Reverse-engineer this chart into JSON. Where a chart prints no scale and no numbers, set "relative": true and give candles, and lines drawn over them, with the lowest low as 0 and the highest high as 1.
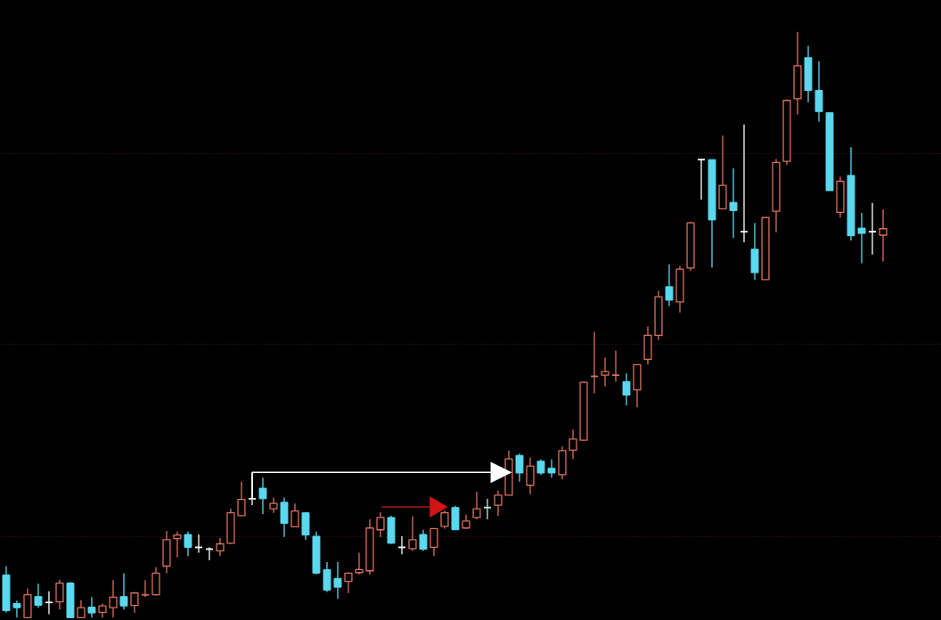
{
  "chart_data": {
    "type": "candlestick",
    "relative": true,
    "categories": [
      null,
      null,
      null,
      null,
      null,
      null,
      null,
      null,
      null,
      null,
      null,
      null,
      null,
      null,
      null,
      null,
      null,
      null,
      null,
      null,
      null,
      null,
      null,
      null,
      null,
      null,
      null,
      null,
      null,
      null,
      null,
      null,
      null,
      null,
      null,
      null,
      null,
      null,
      null,
      null,
      null,
      null,
      null,
      null,
      null,
      null,
      null,
      null,
      null,
      null,
      null,
      null,
      null,
      null,
      null,
      null,
      null,
      null,
      null,
      null,
      null,
      null,
      null,
      null,
      null,
      null,
      null,
      null,
      null,
      null,
      null,
      null,
      null,
      null,
      null,
      null,
      null,
      null,
      null,
      null,
      null,
      null,
      null
    ],
    "ohlc": [
      [
        0.073,
        0.088,
        0.009,
        0.012
      ],
      [
        0.024,
        0.029,
        0,
        0.017
      ],
      [
        0,
        0.05,
        0,
        0.039
      ],
      [
        0.036,
        0.058,
        0.017,
        0.021
      ],
      [
        0.026,
        0.045,
        0.006,
        0.026
      ],
      [
        0.027,
        0.065,
        0.014,
        0.059
      ],
      [
        0.059,
        0.061,
        0,
        0
      ],
      [
        0,
        0.03,
        0,
        0.017
      ],
      [
        0.018,
        0.035,
        0,
        0.008
      ],
      [
        0.009,
        0.024,
        0,
        0.02
      ],
      [
        0.017,
        0.064,
        0,
        0.035
      ],
      [
        0.036,
        0.076,
        0.014,
        0.02
      ],
      [
        0.021,
        0.044,
        0.008,
        0.042
      ],
      [
        0.039,
        0.064,
        0.035,
        0.042
      ],
      [
        0.039,
        0.086,
        0.038,
        0.076
      ],
      [
        0.088,
        0.148,
        0.076,
        0.133
      ],
      [
        0.135,
        0.147,
        0.103,
        0.141
      ],
      [
        0.142,
        0.147,
        0.105,
        0.12
      ],
      [
        0.12,
        0.142,
        0.111,
        0.12
      ],
      [
        0.117,
        0.12,
        0.098,
        0.117
      ],
      [
        0.114,
        0.136,
        0.105,
        0.126
      ],
      [
        0.127,
        0.186,
        0.126,
        0.179
      ],
      [
        0.174,
        0.232,
        0.174,
        0.202
      ],
      [
        0.203,
        0.247,
        0.192,
        0.203
      ],
      [
        0.221,
        0.239,
        0.177,
        0.203
      ],
      [
        0.186,
        0.205,
        0.179,
        0.195
      ],
      [
        0.197,
        0.205,
        0.138,
        0.161
      ],
      [
        0.155,
        0.195,
        0.155,
        0.182
      ],
      [
        0.179,
        0.18,
        0.133,
        0.141
      ],
      [
        0.139,
        0.147,
        0.074,
        0.076
      ],
      [
        0.082,
        0.095,
        0.044,
        0.047
      ],
      [
        0.067,
        0.095,
        0.032,
        0.052
      ],
      [
        0.062,
        0.077,
        0.042,
        0.076
      ],
      [
        0.077,
        0.111,
        0.074,
        0.082
      ],
      [
        0.08,
        0.168,
        0.073,
        0.153
      ],
      [
        0.15,
        0.18,
        0.138,
        0.171
      ],
      [
        0.171,
        0.174,
        0.126,
        0.127
      ],
      [
        0.12,
        0.139,
        0.108,
        0.12
      ],
      [
        0.118,
        0.173,
        0.114,
        0.133
      ],
      [
        0.142,
        0.15,
        0.114,
        0.117
      ],
      [
        0.12,
        0.152,
        0.105,
        0.152
      ],
      [
        0.156,
        0.183,
        0.152,
        0.179
      ],
      [
        0.188,
        0.191,
        0.15,
        0.15
      ],
      [
        0.153,
        0.176,
        0.152,
        0.165
      ],
      [
        0.171,
        0.215,
        0.168,
        0.186
      ],
      [
        0.188,
        0.203,
        0.168,
        0.188
      ],
      [
        0.192,
        0.217,
        0.174,
        0.209
      ],
      [
        0.209,
        0.285,
        0.209,
        0.271
      ],
      [
        0.277,
        0.28,
        0.232,
        0.247
      ],
      [
        0.226,
        0.273,
        0.211,
        0.259
      ],
      [
        0.267,
        0.27,
        0.244,
        0.247
      ],
      [
        0.255,
        0.27,
        0.239,
        0.247
      ],
      [
        0.244,
        0.292,
        0.236,
        0.285
      ],
      [
        0.286,
        0.321,
        0.271,
        0.305
      ],
      [
        0.303,
        0.403,
        0.302,
        0.402
      ],
      [
        0.412,
        0.488,
        0.383,
        0.415
      ],
      [
        0.414,
        0.444,
        0.395,
        0.42
      ],
      [
        0.414,
        0.456,
        0.403,
        0.415
      ],
      [
        0.403,
        0.417,
        0.362,
        0.38
      ],
      [
        0.389,
        0.432,
        0.359,
        0.432
      ],
      [
        0.441,
        0.497,
        0.432,
        0.482
      ],
      [
        0.482,
        0.558,
        0.474,
        0.548
      ],
      [
        0.565,
        0.603,
        0.532,
        0.542
      ],
      [
        0.539,
        0.6,
        0.521,
        0.595
      ],
      [
        0.597,
        0.676,
        0.592,
        0.674
      ],
      [
        0.782,
        0.782,
        0.714,
        0.782
      ],
      [
        0.782,
        0.782,
        0.598,
        0.679
      ],
      [
        0.698,
        0.823,
        0.697,
        0.738
      ],
      [
        0.709,
        0.767,
        0.648,
        0.695
      ],
      [
        0.659,
        0.842,
        0.641,
        0.659
      ],
      [
        0.629,
        0.674,
        0.577,
        0.589
      ],
      [
        0.577,
        0.683,
        0.577,
        0.683
      ],
      [
        0.694,
        0.783,
        0.658,
        0.777
      ],
      [
        0.779,
        0.885,
        0.773,
        0.883
      ],
      [
        0.886,
        1,
        0.859,
        0.942
      ],
      [
        0.956,
        0.976,
        0.88,
        0.9
      ],
      [
        0.9,
        0.95,
        0.847,
        0.864
      ],
      [
        0.862,
        0.862,
        0.729,
        0.729
      ],
      [
        0.692,
        0.753,
        0.683,
        0.745
      ],
      [
        0.755,
        0.803,
        0.644,
        0.652
      ],
      [
        0.665,
        0.691,
        0.605,
        0.656
      ],
      [
        0.659,
        0.708,
        0.62,
        0.659
      ],
      [
        0.653,
        0.697,
        0.608,
        0.664
      ]
    ],
    "colors": [
      "#5ad8ee",
      "#5ad8ee",
      "#d9705f",
      "#5ad8ee",
      "#ffffff",
      "#d9705f",
      "#5ad8ee",
      "#d9705f",
      "#5ad8ee",
      "#d9705f",
      "#d9705f",
      "#5ad8ee",
      "#d9705f",
      "#d9705f",
      "#d9705f",
      "#d9705f",
      "#d9705f",
      "#5ad8ee",
      "#ffffff",
      "#ffffff",
      "#d9705f",
      "#d9705f",
      "#d9705f",
      "#ffffff",
      "#5ad8ee",
      "#d9705f",
      "#5ad8ee",
      "#d9705f",
      "#5ad8ee",
      "#5ad8ee",
      "#5ad8ee",
      "#5ad8ee",
      "#d9705f",
      "#d9705f",
      "#d9705f",
      "#d9705f",
      "#5ad8ee",
      "#ffffff",
      "#d9705f",
      "#5ad8ee",
      "#d9705f",
      "#d9705f",
      "#5ad8ee",
      "#d9705f",
      "#d9705f",
      "#bff0e8",
      "#d9705f",
      "#d9705f",
      "#5ad8ee",
      "#d9705f",
      "#5ad8ee",
      "#5ad8ee",
      "#d9705f",
      "#d9705f",
      "#d9705f",
      "#d9705f",
      "#d9705f",
      "#d9705f",
      "#5ad8ee",
      "#d9705f",
      "#d9705f",
      "#d9705f",
      "#5ad8ee",
      "#d9705f",
      "#d9705f",
      "#ffffff",
      "#5ad8ee",
      "#d9705f",
      "#5ad8ee",
      "#ffffff",
      "#5ad8ee",
      "#d9705f",
      "#d9705f",
      "#d9705f",
      "#d9705f",
      "#5ad8ee",
      "#5ad8ee",
      "#5ad8ee",
      "#d9705f",
      "#5ad8ee",
      "#5ad8ee",
      "#ffffff",
      "#d9705f"
    ],
    "ref_lines": [
      {
        "axis": "y",
        "value": 0.792,
        "color": "#6a2a22",
        "line_style": "dotted"
      },
      {
        "axis": "y",
        "value": 0.467,
        "color": "#6a2a22",
        "line_style": "dotted"
      },
      {
        "axis": "y",
        "value": 0.138,
        "color": "#6a2a22",
        "line_style": "dotted"
      }
    ]
  }
}
